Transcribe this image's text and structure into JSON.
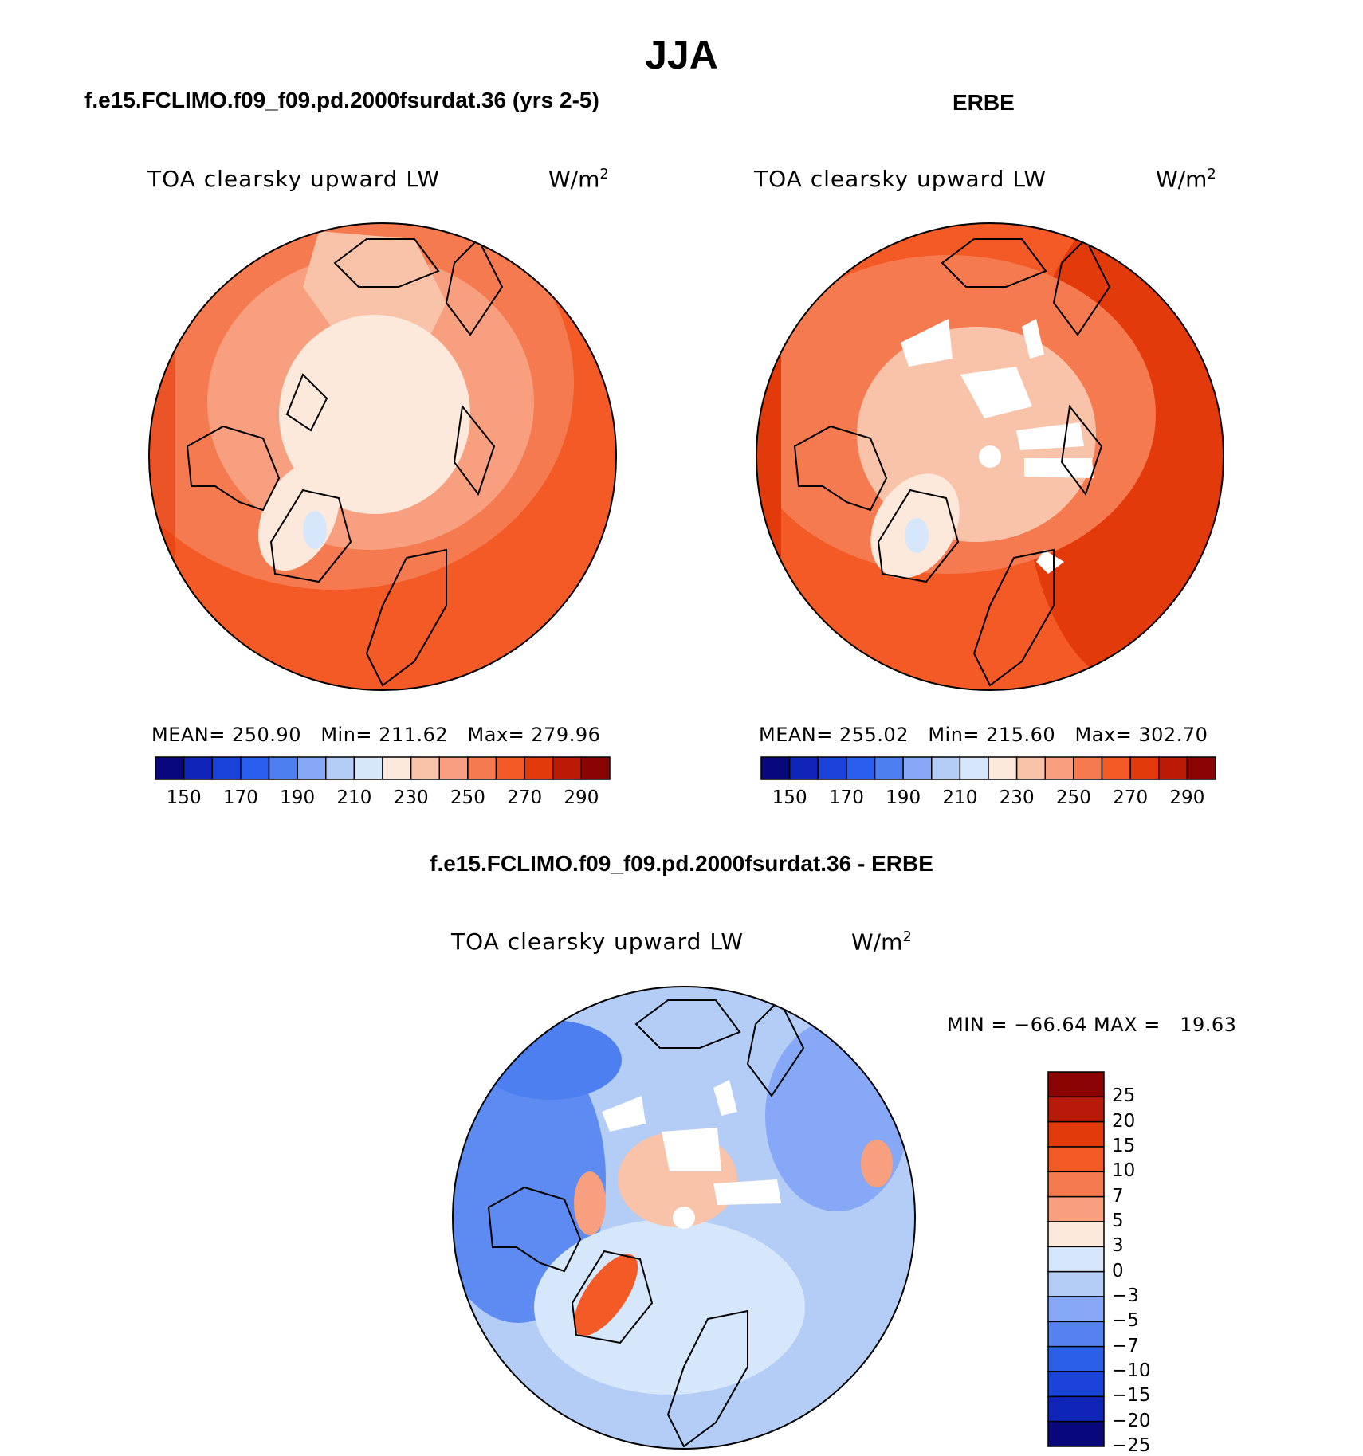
{
  "figure": {
    "season": "JJA",
    "left_panel_title": "f.e15.FCLIMO.f09_f09.pd.2000fsurdat.36 (yrs 2-5)",
    "right_panel_title": "ERBE",
    "diff_panel_title": "f.e15.FCLIMO.f09_f09.pd.2000fsurdat.36 - ERBE"
  },
  "panels": [
    {
      "variable": "TOA clearsky upward LW",
      "units": "W/m",
      "units_sup": "2",
      "stats": "MEAN= 250.90   Min= 211.62   Max= 279.96"
    },
    {
      "variable": "TOA clearsky upward LW",
      "units": "W/m",
      "units_sup": "2",
      "stats": "MEAN= 255.02   Min= 215.60   Max= 302.70"
    },
    {
      "variable": "TOA clearsky upward LW",
      "units": "W/m",
      "units_sup": "2",
      "stats": "MIN = −66.64 MAX =   19.63"
    }
  ],
  "colorbars": {
    "absolute": {
      "colors": [
        "#08087a",
        "#0f24b8",
        "#1a43d9",
        "#2a5eee",
        "#4d7ff0",
        "#86a8f6",
        "#b4cdf7",
        "#d6e7fb",
        "#fde9dc",
        "#f8c3a9",
        "#f79f7e",
        "#f57a50",
        "#f45a26",
        "#e33a0c",
        "#ba1a06",
        "#8a0404"
      ],
      "labels": [
        "150",
        "170",
        "190",
        "210",
        "230",
        "250",
        "270",
        "290"
      ]
    },
    "difference": {
      "colors": [
        "#8a0404",
        "#b8190a",
        "#e33a0c",
        "#f45a26",
        "#f57a50",
        "#f79f7e",
        "#fde9dc",
        "#d6e7fb",
        "#b4cdf7",
        "#86a8f6",
        "#5582ee",
        "#2c5fe8",
        "#1a43d9",
        "#0f24b8",
        "#08087a"
      ],
      "labels": [
        "25",
        "20",
        "15",
        "10",
        "7",
        "5",
        "3",
        "0",
        "−3",
        "−5",
        "−7",
        "−10",
        "−15",
        "−20",
        "−25"
      ]
    }
  },
  "colors": {
    "model_field_base": "#f57a50",
    "obs_field_base": "#f45a26",
    "diff_field_base": "#b4cdf7",
    "missing": "#ffffff"
  }
}
